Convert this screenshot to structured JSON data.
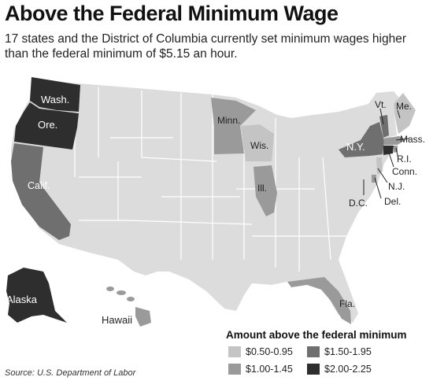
{
  "header": {
    "title": "Above the Federal Minimum Wage",
    "subtitle": "17 states and the District of Columbia currently set minimum wages higher than the federal minimum of $5.15 an hour."
  },
  "colors": {
    "base": "#dcdcdc",
    "tier1": "#c4c4c4",
    "tier2": "#9a9a9a",
    "tier3": "#6f6f6f",
    "tier4": "#2e2e2e",
    "border": "#ffffff"
  },
  "map": {
    "labels": {
      "wash": "Wash.",
      "ore": "Ore.",
      "calif": "Calif.",
      "alaska": "Alaska",
      "hawaii": "Hawaii",
      "minn": "Minn.",
      "wis": "Wis.",
      "ill": "Ill.",
      "fla": "Fla.",
      "ny": "N.Y.",
      "vt": "Vt.",
      "me": "Me.",
      "mass": "Mass.",
      "ri": "R.I.",
      "conn": "Conn.",
      "nj": "N.J.",
      "del": "Del.",
      "dc": "D.C."
    }
  },
  "legend": {
    "title": "Amount above the federal minimum",
    "items": [
      {
        "label": "$0.50-0.95",
        "color": "#c4c4c4"
      },
      {
        "label": "$1.00-1.45",
        "color": "#9a9a9a"
      },
      {
        "label": "$1.50-1.95",
        "color": "#6f6f6f"
      },
      {
        "label": "$2.00-2.25",
        "color": "#2e2e2e"
      }
    ]
  },
  "footer": {
    "source": "Source: U.S. Department of Labor"
  }
}
